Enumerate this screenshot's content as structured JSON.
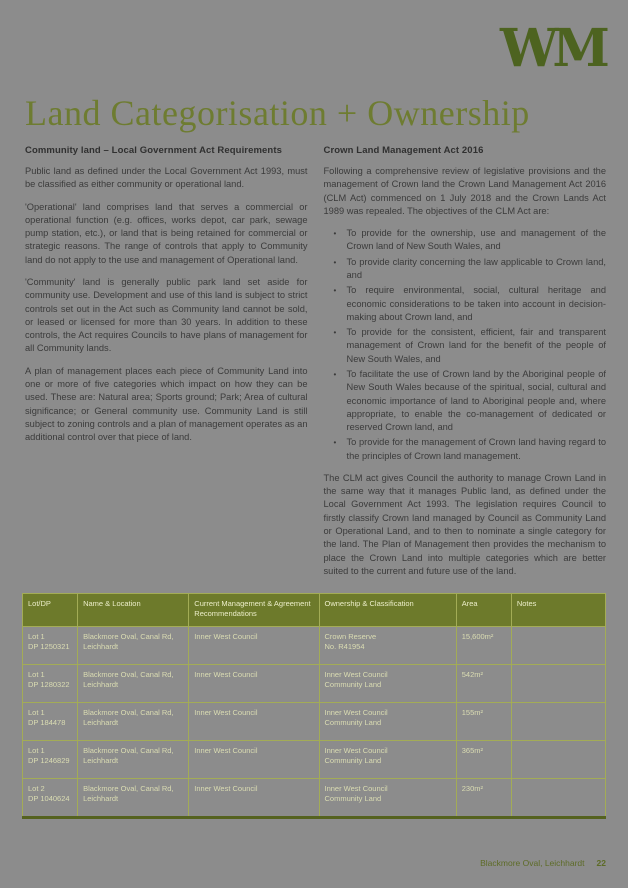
{
  "page": {
    "background_color": "#8c8c8c",
    "accent_color": "#6d7a2b",
    "footer": {
      "text": "Blackmore Oval, Leichhardt",
      "page_number": "22"
    }
  },
  "logo": {
    "text": "WM",
    "color": "#4d6320"
  },
  "title": "Land Categorisation + Ownership",
  "left_column": {
    "heading": "Community land – Local Government Act Requirements",
    "paragraphs": [
      "Public land as defined under the Local Government Act 1993, must be classified as either community or operational land.",
      "'Operational' land comprises land that serves a commercial or operational function (e.g. offices, works depot, car park, sewage pump station, etc.), or land that is being retained for commercial or strategic reasons. The range of controls that apply to Community land do not apply to the use and management of Operational land.",
      "'Community' land is generally public park land set aside for community use. Development and use of this land is subject to strict controls set out in the Act such as Community land cannot be sold, or leased or licensed for more than 30 years. In addition to these controls, the Act requires Councils to have plans of management for all Community lands.",
      "A plan of management places each piece of Community Land into one or more of five categories which impact on how they can be used. These are: Natural area; Sports ground; Park; Area of cultural significance; or General community use. Community Land is still subject to zoning controls and a plan of management operates as an additional control over that piece of land."
    ]
  },
  "right_column": {
    "heading": "Crown Land Management Act 2016",
    "intro": "Following a comprehensive review of legislative provisions and the management of Crown land the Crown Land Management Act 2016 (CLM Act) commenced on 1 July 2018 and the Crown Lands Act 1989 was repealed. The objectives of the CLM Act are:",
    "objectives": [
      "To provide for the ownership, use and management of the Crown land of New South Wales, and",
      "To provide clarity concerning the law applicable to Crown land, and",
      "To require environmental, social, cultural heritage and economic considerations to be taken into account in decision-making about Crown land, and",
      "To provide for the consistent, efficient, fair and transparent management of Crown land for the benefit of the people of New South Wales, and",
      "To facilitate the use of Crown land by the Aboriginal people of New South Wales because of the spiritual, social, cultural and economic importance of land to Aboriginal people and, where appropriate, to enable the co-management of dedicated or reserved Crown land, and",
      "To provide for the management of Crown land having regard to the principles of Crown land management."
    ],
    "closing": "The CLM act gives Council the authority to manage Crown Land in the same way that it manages Public land, as defined under the Local Government Act 1993. The legislation requires Council to firstly classify Crown land managed by Council as Community Land or Operational Land, and to then to nominate a single category for the land. The Plan of Management then provides the mechanism to place the Crown Land into multiple categories which are better suited to the current and future use of the land."
  },
  "table": {
    "headers": [
      "Lot/DP",
      "Name & Location",
      "Current Management & Agreement Recommendations",
      "Ownership & Classification",
      "Area",
      "Notes"
    ],
    "rows": [
      {
        "lot": "Lot 1",
        "dp": "DP 1250321",
        "name": "Blackmore Oval, Canal Rd, Leichhardt",
        "management": "Inner West Council",
        "ownership": [
          "Crown Reserve",
          "No. R41954"
        ],
        "area": "15,600m²",
        "notes": ""
      },
      {
        "lot": "Lot 1",
        "dp": "DP 1280322",
        "name": "Blackmore Oval, Canal Rd, Leichhardt",
        "management": "Inner West Council",
        "ownership": [
          "Inner West Council",
          "Community Land"
        ],
        "area": "542m²",
        "notes": ""
      },
      {
        "lot": "Lot 1",
        "dp": "DP 184478",
        "name": "Blackmore Oval, Canal Rd, Leichhardt",
        "management": "Inner West Council",
        "ownership": [
          "Inner West Council",
          "Community Land"
        ],
        "area": "155m²",
        "notes": ""
      },
      {
        "lot": "Lot 1",
        "dp": "DP 1246829",
        "name": "Blackmore Oval, Canal Rd, Leichhardt",
        "management": "Inner West Council",
        "ownership": [
          "Inner West Council",
          "Community Land"
        ],
        "area": "365m²",
        "notes": ""
      },
      {
        "lot": "Lot 2",
        "dp": "DP 1040624",
        "name": "Blackmore Oval, Canal Rd, Leichhardt",
        "management": "Inner West Council",
        "ownership": [
          "Inner West Council",
          "Community Land"
        ],
        "area": "230m²",
        "notes": ""
      }
    ]
  }
}
